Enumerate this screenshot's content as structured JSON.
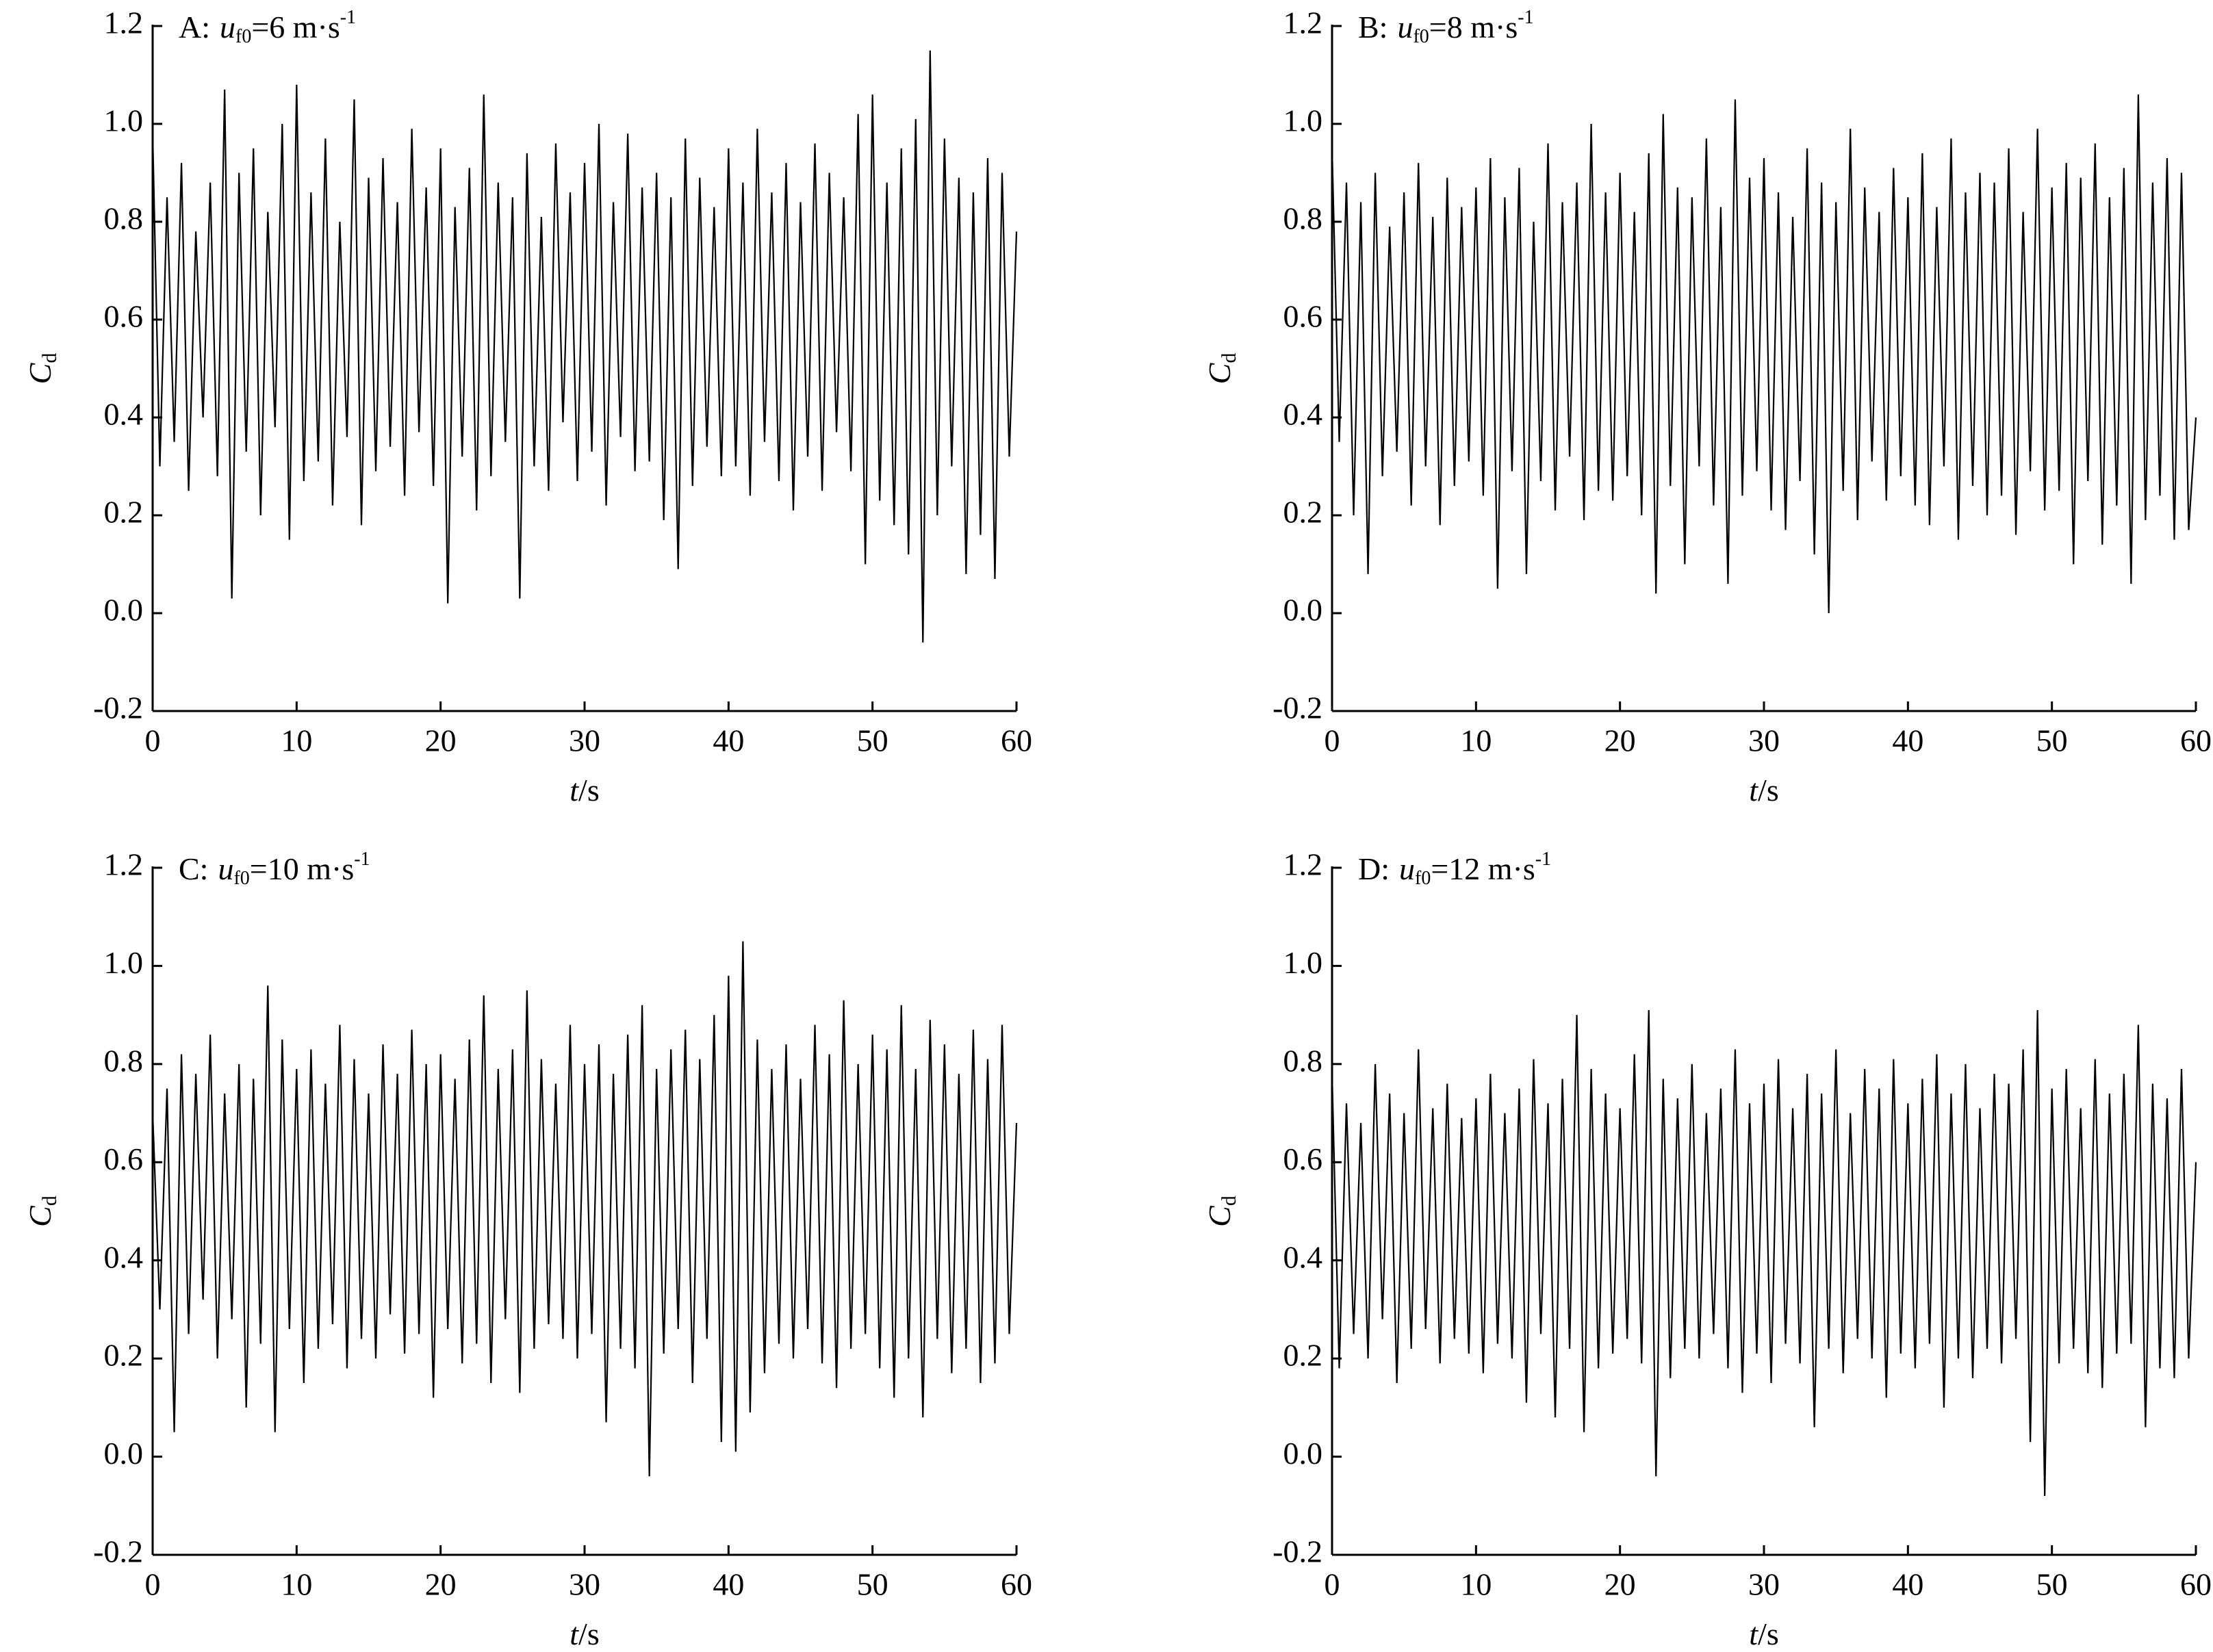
{
  "chart_data": [
    {
      "type": "line",
      "label": {
        "prefix": "A:",
        "var": "u",
        "sub": "f0",
        "eq": "=6 m·s",
        "sup": "-1"
      },
      "x_label": {
        "var": "t",
        "unit": "/s"
      },
      "y_label": {
        "var": "C",
        "sub": "d"
      },
      "color": "#000000",
      "xlim": [
        0,
        60
      ],
      "xticks": [
        0,
        10,
        20,
        30,
        40,
        50,
        60
      ],
      "ylim": [
        -0.2,
        1.2
      ],
      "yticks": [
        -0.2,
        {
          "value": 0,
          "label": "0.0"
        },
        0.2,
        0.4,
        0.6,
        0.8,
        {
          "value": 1,
          "label": "1.0"
        },
        1.2
      ],
      "x": [
        0,
        0.5,
        1,
        1.5,
        2,
        2.5,
        3,
        3.5,
        4,
        4.5,
        5,
        5.5,
        6,
        6.5,
        7,
        7.5,
        8,
        8.5,
        9,
        9.5,
        10,
        10.5,
        11,
        11.5,
        12,
        12.5,
        13,
        13.5,
        14,
        14.5,
        15,
        15.5,
        16,
        16.5,
        17,
        17.5,
        18,
        18.5,
        19,
        19.5,
        20,
        20.5,
        21,
        21.5,
        22,
        22.5,
        23,
        23.5,
        24,
        24.5,
        25,
        25.5,
        26,
        26.5,
        27,
        27.5,
        28,
        28.5,
        29,
        29.5,
        30,
        30.5,
        31,
        31.5,
        32,
        32.5,
        33,
        33.5,
        34,
        34.5,
        35,
        35.5,
        36,
        36.5,
        37,
        37.5,
        38,
        38.5,
        39,
        39.5,
        40,
        40.5,
        41,
        41.5,
        42,
        42.5,
        43,
        43.5,
        44,
        44.5,
        45,
        45.5,
        46,
        46.5,
        47,
        47.5,
        48,
        48.5,
        49,
        49.5,
        50,
        50.5,
        51,
        51.5,
        52,
        52.5,
        53,
        53.5,
        54,
        54.5,
        55,
        55.5,
        56,
        56.5,
        57,
        57.5,
        58,
        58.5,
        59,
        59.5,
        60
      ],
      "values": [
        0.98,
        0.3,
        0.85,
        0.35,
        0.92,
        0.25,
        0.78,
        0.4,
        0.88,
        0.28,
        1.07,
        0.03,
        0.9,
        0.33,
        0.95,
        0.2,
        0.82,
        0.38,
        1.0,
        0.15,
        1.08,
        0.27,
        0.86,
        0.31,
        0.97,
        0.22,
        0.8,
        0.36,
        1.05,
        0.18,
        0.89,
        0.29,
        0.93,
        0.34,
        0.84,
        0.24,
        0.99,
        0.37,
        0.87,
        0.26,
        0.95,
        0.02,
        0.83,
        0.32,
        0.91,
        0.21,
        1.06,
        0.28,
        0.88,
        0.35,
        0.85,
        0.03,
        0.94,
        0.3,
        0.81,
        0.25,
        0.96,
        0.39,
        0.86,
        0.27,
        0.92,
        0.33,
        1.0,
        0.22,
        0.84,
        0.36,
        0.98,
        0.29,
        0.87,
        0.31,
        0.9,
        0.19,
        0.85,
        0.09,
        0.97,
        0.26,
        0.89,
        0.34,
        0.83,
        0.28,
        0.95,
        0.3,
        0.88,
        0.24,
        0.99,
        0.35,
        0.86,
        0.27,
        0.92,
        0.21,
        0.84,
        0.32,
        0.96,
        0.25,
        0.9,
        0.37,
        0.85,
        0.29,
        1.02,
        0.1,
        1.06,
        0.23,
        0.88,
        0.18,
        0.95,
        0.12,
        1.01,
        -0.06,
        1.15,
        0.2,
        0.97,
        0.3,
        0.89,
        0.08,
        0.86,
        0.16,
        0.93,
        0.07,
        0.9,
        0.32,
        0.78
      ]
    },
    {
      "type": "line",
      "label": {
        "prefix": "B:",
        "var": "u",
        "sub": "f0",
        "eq": "=8 m·s",
        "sup": "-1"
      },
      "x_label": {
        "var": "t",
        "unit": "/s"
      },
      "y_label": {
        "var": "C",
        "sub": "d"
      },
      "color": "#000000",
      "xlim": [
        0,
        60
      ],
      "xticks": [
        0,
        10,
        20,
        30,
        40,
        50,
        60
      ],
      "ylim": [
        -0.2,
        1.2
      ],
      "yticks": [
        -0.2,
        {
          "value": 0,
          "label": "0.0"
        },
        0.2,
        0.4,
        0.6,
        0.8,
        {
          "value": 1,
          "label": "1.0"
        },
        1.2
      ],
      "x": [
        0,
        0.5,
        1,
        1.5,
        2,
        2.5,
        3,
        3.5,
        4,
        4.5,
        5,
        5.5,
        6,
        6.5,
        7,
        7.5,
        8,
        8.5,
        9,
        9.5,
        10,
        10.5,
        11,
        11.5,
        12,
        12.5,
        13,
        13.5,
        14,
        14.5,
        15,
        15.5,
        16,
        16.5,
        17,
        17.5,
        18,
        18.5,
        19,
        19.5,
        20,
        20.5,
        21,
        21.5,
        22,
        22.5,
        23,
        23.5,
        24,
        24.5,
        25,
        25.5,
        26,
        26.5,
        27,
        27.5,
        28,
        28.5,
        29,
        29.5,
        30,
        30.5,
        31,
        31.5,
        32,
        32.5,
        33,
        33.5,
        34,
        34.5,
        35,
        35.5,
        36,
        36.5,
        37,
        37.5,
        38,
        38.5,
        39,
        39.5,
        40,
        40.5,
        41,
        41.5,
        42,
        42.5,
        43,
        43.5,
        44,
        44.5,
        45,
        45.5,
        46,
        46.5,
        47,
        47.5,
        48,
        48.5,
        49,
        49.5,
        50,
        50.5,
        51,
        51.5,
        52,
        52.5,
        53,
        53.5,
        54,
        54.5,
        55,
        55.5,
        56,
        56.5,
        57,
        57.5,
        58,
        58.5,
        59,
        59.5,
        60
      ],
      "values": [
        0.95,
        0.35,
        0.88,
        0.2,
        0.84,
        0.08,
        0.9,
        0.28,
        0.79,
        0.33,
        0.86,
        0.22,
        0.92,
        0.3,
        0.81,
        0.18,
        0.89,
        0.26,
        0.83,
        0.31,
        0.87,
        0.24,
        0.93,
        0.05,
        0.85,
        0.29,
        0.91,
        0.08,
        0.8,
        0.27,
        0.96,
        0.21,
        0.84,
        0.32,
        0.88,
        0.19,
        1.0,
        0.25,
        0.86,
        0.23,
        0.9,
        0.28,
        0.82,
        0.2,
        0.94,
        0.04,
        1.02,
        0.26,
        0.87,
        0.1,
        0.85,
        0.3,
        0.97,
        0.22,
        0.83,
        0.06,
        1.05,
        0.24,
        0.89,
        0.29,
        0.93,
        0.21,
        0.86,
        0.17,
        0.81,
        0.27,
        0.95,
        0.12,
        0.88,
        0.0,
        0.84,
        0.25,
        0.99,
        0.19,
        0.87,
        0.31,
        0.82,
        0.23,
        0.91,
        0.28,
        0.85,
        0.22,
        0.94,
        0.18,
        0.83,
        0.3,
        0.97,
        0.15,
        0.86,
        0.26,
        0.9,
        0.2,
        0.88,
        0.24,
        0.95,
        0.16,
        0.82,
        0.29,
        0.99,
        0.21,
        0.87,
        0.25,
        0.92,
        0.1,
        0.89,
        0.27,
        0.96,
        0.14,
        0.85,
        0.22,
        0.91,
        0.06,
        1.06,
        0.19,
        0.88,
        0.24,
        0.93,
        0.15,
        0.9,
        0.17,
        0.4
      ]
    },
    {
      "type": "line",
      "label": {
        "prefix": "C:",
        "var": "u",
        "sub": "f0",
        "eq": "=10 m·s",
        "sup": "-1"
      },
      "x_label": {
        "var": "t",
        "unit": "/s"
      },
      "y_label": {
        "var": "C",
        "sub": "d"
      },
      "color": "#000000",
      "xlim": [
        0,
        60
      ],
      "xticks": [
        0,
        10,
        20,
        30,
        40,
        50,
        60
      ],
      "ylim": [
        -0.2,
        1.2
      ],
      "yticks": [
        -0.2,
        {
          "value": 0,
          "label": "0.0"
        },
        0.2,
        0.4,
        0.6,
        0.8,
        {
          "value": 1,
          "label": "1.0"
        },
        1.2
      ],
      "x": [
        0,
        0.5,
        1,
        1.5,
        2,
        2.5,
        3,
        3.5,
        4,
        4.5,
        5,
        5.5,
        6,
        6.5,
        7,
        7.5,
        8,
        8.5,
        9,
        9.5,
        10,
        10.5,
        11,
        11.5,
        12,
        12.5,
        13,
        13.5,
        14,
        14.5,
        15,
        15.5,
        16,
        16.5,
        17,
        17.5,
        18,
        18.5,
        19,
        19.5,
        20,
        20.5,
        21,
        21.5,
        22,
        22.5,
        23,
        23.5,
        24,
        24.5,
        25,
        25.5,
        26,
        26.5,
        27,
        27.5,
        28,
        28.5,
        29,
        29.5,
        30,
        30.5,
        31,
        31.5,
        32,
        32.5,
        33,
        33.5,
        34,
        34.5,
        35,
        35.5,
        36,
        36.5,
        37,
        37.5,
        38,
        38.5,
        39,
        39.5,
        40,
        40.5,
        41,
        41.5,
        42,
        42.5,
        43,
        43.5,
        44,
        44.5,
        45,
        45.5,
        46,
        46.5,
        47,
        47.5,
        48,
        48.5,
        49,
        49.5,
        50,
        50.5,
        51,
        51.5,
        52,
        52.5,
        53,
        53.5,
        54,
        54.5,
        55,
        55.5,
        56,
        56.5,
        57,
        57.5,
        58,
        58.5,
        59,
        59.5,
        60
      ],
      "values": [
        0.7,
        0.3,
        0.75,
        0.05,
        0.82,
        0.25,
        0.78,
        0.32,
        0.86,
        0.2,
        0.74,
        0.28,
        0.8,
        0.1,
        0.77,
        0.23,
        0.96,
        0.05,
        0.85,
        0.26,
        0.79,
        0.15,
        0.83,
        0.22,
        0.76,
        0.27,
        0.88,
        0.18,
        0.81,
        0.24,
        0.74,
        0.2,
        0.84,
        0.29,
        0.78,
        0.21,
        0.87,
        0.25,
        0.8,
        0.12,
        0.82,
        0.26,
        0.77,
        0.19,
        0.85,
        0.23,
        0.94,
        0.15,
        0.79,
        0.28,
        0.83,
        0.13,
        0.95,
        0.22,
        0.81,
        0.27,
        0.76,
        0.24,
        0.88,
        0.2,
        0.8,
        0.25,
        0.84,
        0.07,
        0.78,
        0.22,
        0.86,
        0.18,
        0.92,
        -0.04,
        0.79,
        0.21,
        0.83,
        0.26,
        0.87,
        0.15,
        0.81,
        0.24,
        0.9,
        0.03,
        0.98,
        0.01,
        1.05,
        0.09,
        0.85,
        0.17,
        0.79,
        0.23,
        0.84,
        0.2,
        0.77,
        0.26,
        0.88,
        0.19,
        0.82,
        0.14,
        0.93,
        0.22,
        0.8,
        0.25,
        0.86,
        0.18,
        0.83,
        0.12,
        0.92,
        0.2,
        0.79,
        0.08,
        0.89,
        0.24,
        0.84,
        0.17,
        0.78,
        0.22,
        0.87,
        0.15,
        0.81,
        0.19,
        0.88,
        0.25,
        0.68
      ]
    },
    {
      "type": "line",
      "label": {
        "prefix": "D:",
        "var": "u",
        "sub": "f0",
        "eq": "=12 m·s",
        "sup": "-1"
      },
      "x_label": {
        "var": "t",
        "unit": "/s"
      },
      "y_label": {
        "var": "C",
        "sub": "d"
      },
      "color": "#000000",
      "xlim": [
        0,
        60
      ],
      "xticks": [
        0,
        10,
        20,
        30,
        40,
        50,
        60
      ],
      "ylim": [
        -0.2,
        1.2
      ],
      "yticks": [
        -0.2,
        {
          "value": 0,
          "label": "0.0"
        },
        0.2,
        0.4,
        0.6,
        0.8,
        {
          "value": 1,
          "label": "1.0"
        },
        1.2
      ],
      "x": [
        0,
        0.5,
        1,
        1.5,
        2,
        2.5,
        3,
        3.5,
        4,
        4.5,
        5,
        5.5,
        6,
        6.5,
        7,
        7.5,
        8,
        8.5,
        9,
        9.5,
        10,
        10.5,
        11,
        11.5,
        12,
        12.5,
        13,
        13.5,
        14,
        14.5,
        15,
        15.5,
        16,
        16.5,
        17,
        17.5,
        18,
        18.5,
        19,
        19.5,
        20,
        20.5,
        21,
        21.5,
        22,
        22.5,
        23,
        23.5,
        24,
        24.5,
        25,
        25.5,
        26,
        26.5,
        27,
        27.5,
        28,
        28.5,
        29,
        29.5,
        30,
        30.5,
        31,
        31.5,
        32,
        32.5,
        33,
        33.5,
        34,
        34.5,
        35,
        35.5,
        36,
        36.5,
        37,
        37.5,
        38,
        38.5,
        39,
        39.5,
        40,
        40.5,
        41,
        41.5,
        42,
        42.5,
        43,
        43.5,
        44,
        44.5,
        45,
        45.5,
        46,
        46.5,
        47,
        47.5,
        48,
        48.5,
        49,
        49.5,
        50,
        50.5,
        51,
        51.5,
        52,
        52.5,
        53,
        53.5,
        54,
        54.5,
        55,
        55.5,
        56,
        56.5,
        57,
        57.5,
        58,
        58.5,
        59,
        59.5,
        60
      ],
      "values": [
        0.78,
        0.18,
        0.72,
        0.25,
        0.68,
        0.2,
        0.8,
        0.28,
        0.74,
        0.15,
        0.7,
        0.22,
        0.83,
        0.26,
        0.71,
        0.19,
        0.76,
        0.24,
        0.69,
        0.21,
        0.73,
        0.17,
        0.78,
        0.23,
        0.7,
        0.2,
        0.75,
        0.11,
        0.81,
        0.25,
        0.72,
        0.08,
        0.77,
        0.22,
        0.9,
        0.05,
        0.79,
        0.18,
        0.74,
        0.21,
        0.71,
        0.24,
        0.82,
        0.19,
        0.91,
        -0.04,
        0.77,
        0.16,
        0.73,
        0.22,
        0.8,
        0.2,
        0.7,
        0.25,
        0.75,
        0.18,
        0.83,
        0.13,
        0.72,
        0.21,
        0.76,
        0.15,
        0.81,
        0.23,
        0.71,
        0.19,
        0.78,
        0.06,
        0.74,
        0.22,
        0.83,
        0.17,
        0.7,
        0.24,
        0.79,
        0.2,
        0.75,
        0.12,
        0.81,
        0.21,
        0.72,
        0.18,
        0.77,
        0.23,
        0.82,
        0.1,
        0.74,
        0.2,
        0.8,
        0.16,
        0.71,
        0.22,
        0.78,
        0.19,
        0.76,
        0.24,
        0.83,
        0.03,
        0.91,
        -0.08,
        0.75,
        0.19,
        0.79,
        0.22,
        0.71,
        0.17,
        0.81,
        0.14,
        0.74,
        0.21,
        0.78,
        0.23,
        0.88,
        0.06,
        0.76,
        0.18,
        0.73,
        0.16,
        0.79,
        0.2,
        0.6
      ]
    }
  ]
}
